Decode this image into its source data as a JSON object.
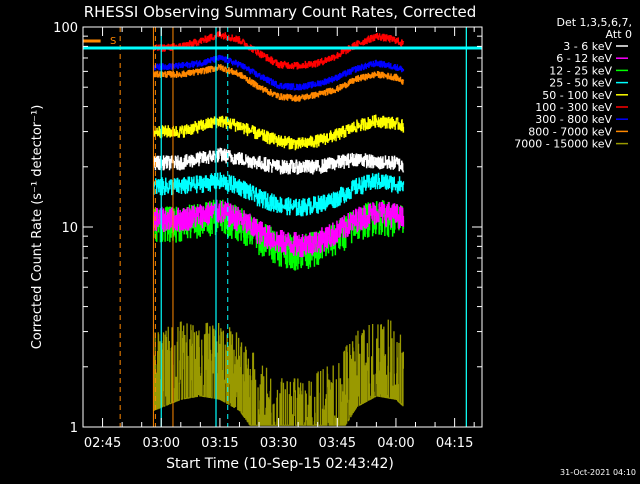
{
  "chart_data": {
    "type": "line",
    "title": "RHESSI Observing Summary Count Rates, Corrected",
    "xlabel": "Start Time (10-Sep-15 02:43:42)",
    "ylabel": "Corrected Count Rate (s⁻¹ detector⁻¹)",
    "yscale": "log",
    "ylim": [
      1,
      100
    ],
    "xlim": [
      "02:40",
      "04:22"
    ],
    "x_ticks": [
      "02:45",
      "03:00",
      "03:15",
      "03:30",
      "03:45",
      "04:00",
      "04:15"
    ],
    "y_ticks": [
      "1",
      "10",
      "100"
    ],
    "legend_header": [
      "Det 1,3,5,6,7,",
      "Att 0"
    ],
    "legend_position": "top-right",
    "footer_date": "31-Oct-2021 04:10",
    "flag_label": "S",
    "flag_markers": {
      "solid_cyan_minutes": [
        2.0,
        16.0,
        80.0,
        84.5
      ],
      "dashed_cyan_minutes": [
        19.0,
        99.0
      ],
      "solid_orange_minutes": [
        0,
        5,
        80,
        96
      ],
      "dashed_orange_minutes": [
        -8.5,
        0.5
      ],
      "s_bar_minutes": [
        [
          -18.5,
          -13.5
        ],
        [
          97,
          107
        ]
      ]
    },
    "x": [
      "02:58",
      "03:05",
      "03:10",
      "03:15",
      "03:20",
      "03:25",
      "03:30",
      "03:35",
      "03:40",
      "03:45",
      "03:50",
      "03:55",
      "04:00",
      "04:02"
    ],
    "series": [
      {
        "name": "3 - 6 keV",
        "color": "#ffffff",
        "values": [
          21,
          21,
          22,
          23,
          22,
          21,
          20,
          20,
          20,
          21,
          22,
          21,
          21,
          20
        ]
      },
      {
        "name": "6 - 12 keV",
        "color": "#ff00ff",
        "values": [
          11,
          11,
          11.5,
          12,
          11,
          9.5,
          8.5,
          8.2,
          8.5,
          9.5,
          11,
          12,
          11.5,
          11
        ]
      },
      {
        "name": "12 - 25 keV",
        "color": "#00ff00",
        "values": [
          10.5,
          10.5,
          11,
          11.5,
          10.5,
          9,
          8,
          7.5,
          8,
          9,
          10.5,
          11.5,
          11,
          10.5
        ]
      },
      {
        "name": "25 - 50 keV",
        "color": "#00ffff",
        "values": [
          16,
          16,
          16.5,
          17,
          16,
          14,
          13,
          12.5,
          13,
          14,
          16,
          17,
          16.5,
          16
        ]
      },
      {
        "name": "50 - 100 keV",
        "color": "#ffff00",
        "values": [
          30,
          30,
          32,
          34,
          32,
          29,
          27,
          26,
          27,
          29,
          32,
          34,
          33,
          32
        ]
      },
      {
        "name": "100 - 300 keV",
        "color": "#ff0000",
        "values": [
          78,
          80,
          85,
          92,
          86,
          74,
          65,
          64,
          66,
          72,
          82,
          90,
          86,
          82
        ]
      },
      {
        "name": "300 - 800 keV",
        "color": "#0000ff",
        "values": [
          63,
          64,
          66,
          70,
          65,
          57,
          51,
          50,
          52,
          56,
          62,
          66,
          63,
          61
        ]
      },
      {
        "name": "800 - 7000 keV",
        "color": "#ff8800",
        "values": [
          58,
          58,
          60,
          63,
          58,
          50,
          45,
          44,
          46,
          49,
          55,
          58,
          56,
          53
        ]
      },
      {
        "name": "7000 - 15000 keV",
        "color": "#999900",
        "values": [
          2.2,
          2.5,
          2.6,
          2.5,
          2.2,
          1.6,
          1.3,
          1.3,
          1.4,
          1.6,
          2.3,
          2.6,
          2.5,
          2.3
        ]
      }
    ]
  }
}
